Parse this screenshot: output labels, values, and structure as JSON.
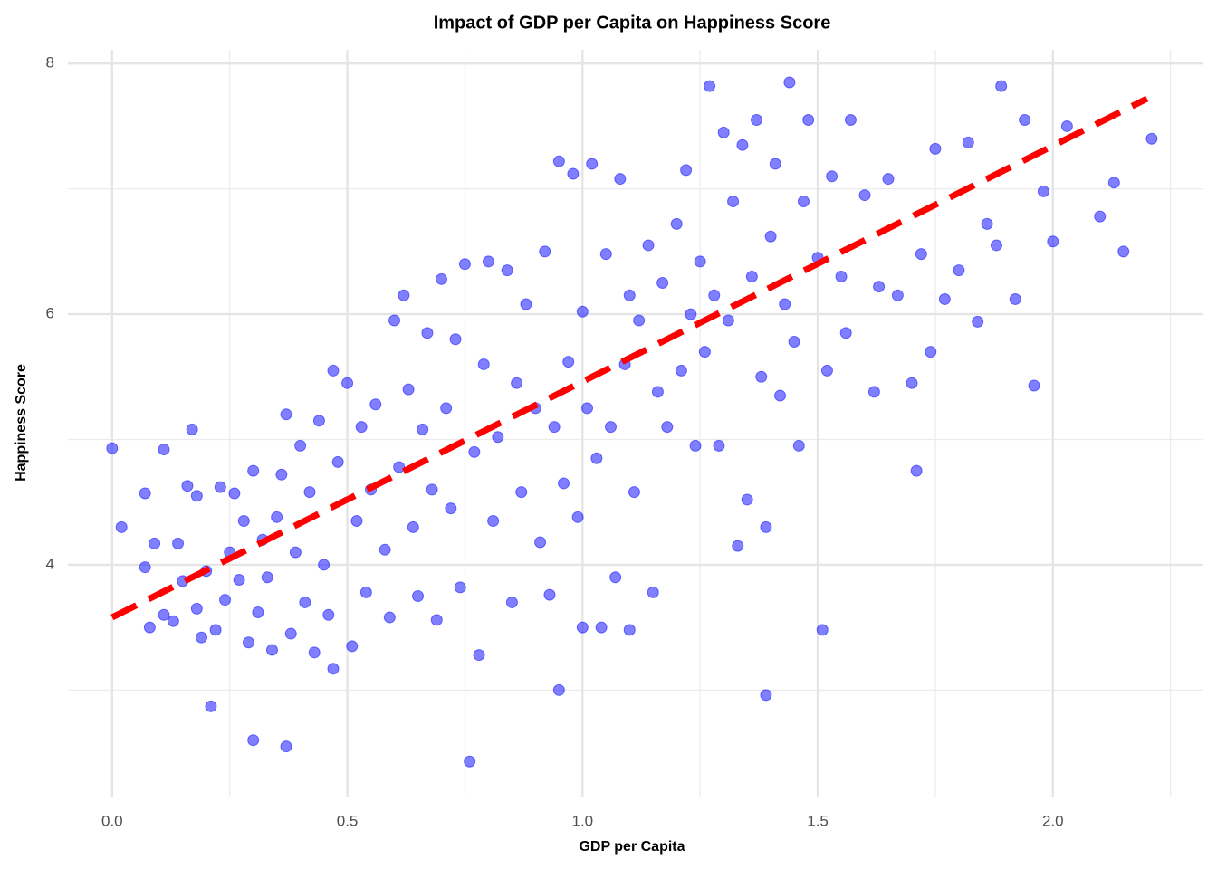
{
  "chart_data": {
    "type": "scatter",
    "title": "Impact of GDP per Capita on Happiness Score",
    "x_label": "GDP per Capita",
    "y_label": "Happiness Score",
    "xlim": [
      -0.094,
      2.318
    ],
    "ylim": [
      2.15,
      8.11
    ],
    "xticks": [
      {
        "value": 0,
        "label": "0.0"
      },
      0.5,
      {
        "value": 1,
        "label": "1.0"
      },
      1.5,
      {
        "value": 2,
        "label": "2.0"
      }
    ],
    "yticks": [
      4,
      6,
      8
    ],
    "x_minor_ticks": [
      0.25,
      0.75,
      1.25,
      1.75,
      2.25
    ],
    "y_minor_ticks": [
      3,
      5,
      7
    ],
    "grid": true,
    "series": [
      {
        "color": "#0000ff",
        "x": [
          0.0,
          0.02,
          0.07,
          0.07,
          0.08,
          0.09,
          0.11,
          0.11,
          0.13,
          0.14,
          0.15,
          0.16,
          0.17,
          0.18,
          0.18,
          0.19,
          0.2,
          0.21,
          0.22,
          0.23,
          0.24,
          0.25,
          0.26,
          0.27,
          0.28,
          0.29,
          0.3,
          0.3,
          0.31,
          0.32,
          0.33,
          0.34,
          0.35,
          0.36,
          0.37,
          0.37,
          0.38,
          0.39,
          0.4,
          0.41,
          0.42,
          0.43,
          0.44,
          0.45,
          0.46,
          0.47,
          0.47,
          0.48,
          0.5,
          0.51,
          0.52,
          0.53,
          0.54,
          0.55,
          0.56,
          0.58,
          0.59,
          0.6,
          0.61,
          0.62,
          0.63,
          0.64,
          0.65,
          0.66,
          0.67,
          0.68,
          0.69,
          0.7,
          0.71,
          0.72,
          0.73,
          0.74,
          0.75,
          0.76,
          0.77,
          0.78,
          0.79,
          0.8,
          0.81,
          0.82,
          0.84,
          0.85,
          0.86,
          0.87,
          0.88,
          0.9,
          0.91,
          0.92,
          0.93,
          0.94,
          0.95,
          0.95,
          0.96,
          0.97,
          0.98,
          0.99,
          1.0,
          1.0,
          1.01,
          1.02,
          1.03,
          1.04,
          1.05,
          1.06,
          1.07,
          1.08,
          1.09,
          1.1,
          1.1,
          1.11,
          1.12,
          1.14,
          1.15,
          1.16,
          1.17,
          1.18,
          1.2,
          1.21,
          1.22,
          1.23,
          1.24,
          1.25,
          1.26,
          1.27,
          1.28,
          1.29,
          1.3,
          1.31,
          1.32,
          1.33,
          1.34,
          1.35,
          1.36,
          1.37,
          1.38,
          1.39,
          1.39,
          1.4,
          1.41,
          1.42,
          1.43,
          1.44,
          1.45,
          1.46,
          1.47,
          1.48,
          1.5,
          1.51,
          1.52,
          1.53,
          1.55,
          1.56,
          1.57,
          1.6,
          1.62,
          1.63,
          1.65,
          1.67,
          1.7,
          1.71,
          1.72,
          1.74,
          1.75,
          1.77,
          1.8,
          1.82,
          1.84,
          1.86,
          1.88,
          1.89,
          1.92,
          1.94,
          1.96,
          1.98,
          2.0,
          2.03,
          2.1,
          2.13,
          2.15,
          2.21
        ],
        "values": [
          4.93,
          4.3,
          4.57,
          3.98,
          3.5,
          4.17,
          4.92,
          3.6,
          3.55,
          4.17,
          3.87,
          4.63,
          5.08,
          3.65,
          4.55,
          3.42,
          3.95,
          2.87,
          3.48,
          4.62,
          3.72,
          4.1,
          4.57,
          3.88,
          4.35,
          3.38,
          2.6,
          4.75,
          3.62,
          4.2,
          3.9,
          3.32,
          4.38,
          4.72,
          2.55,
          5.2,
          3.45,
          4.1,
          4.95,
          3.7,
          4.58,
          3.3,
          5.15,
          4.0,
          3.6,
          3.17,
          5.55,
          4.82,
          5.45,
          3.35,
          4.35,
          5.1,
          3.78,
          4.6,
          5.28,
          4.12,
          3.58,
          5.95,
          4.78,
          6.15,
          5.4,
          4.3,
          3.75,
          5.08,
          5.85,
          4.6,
          3.56,
          6.28,
          5.25,
          4.45,
          5.8,
          3.82,
          6.4,
          2.43,
          4.9,
          3.28,
          5.6,
          6.42,
          4.35,
          5.02,
          6.35,
          3.7,
          5.45,
          4.58,
          6.08,
          5.25,
          4.18,
          6.5,
          3.76,
          5.1,
          3.0,
          7.22,
          4.65,
          5.62,
          7.12,
          4.38,
          6.02,
          3.5,
          5.25,
          7.2,
          4.85,
          3.5,
          6.48,
          5.1,
          3.9,
          7.08,
          5.6,
          6.15,
          3.48,
          4.58,
          5.95,
          6.55,
          3.78,
          5.38,
          6.25,
          5.1,
          6.72,
          5.55,
          7.15,
          6.0,
          4.95,
          6.42,
          5.7,
          7.82,
          6.15,
          4.95,
          7.45,
          5.95,
          6.9,
          4.15,
          7.35,
          4.52,
          6.3,
          7.55,
          5.5,
          2.96,
          4.3,
          6.62,
          7.2,
          5.35,
          6.08,
          7.85,
          5.78,
          4.95,
          6.9,
          7.55,
          6.45,
          3.48,
          5.55,
          7.1,
          6.3,
          5.85,
          7.55,
          6.95,
          5.38,
          6.22,
          7.08,
          6.15,
          5.45,
          4.75,
          6.48,
          5.7,
          7.32,
          6.12,
          6.35,
          7.37,
          5.94,
          6.72,
          6.55,
          7.82,
          6.12,
          7.55,
          5.43,
          6.98,
          6.58,
          7.5,
          6.78,
          7.05,
          6.5,
          7.4
        ]
      }
    ],
    "trend_line": {
      "color": "#ff0000",
      "x": [
        0,
        2.2
      ],
      "values": [
        3.58,
        7.72
      ]
    }
  }
}
